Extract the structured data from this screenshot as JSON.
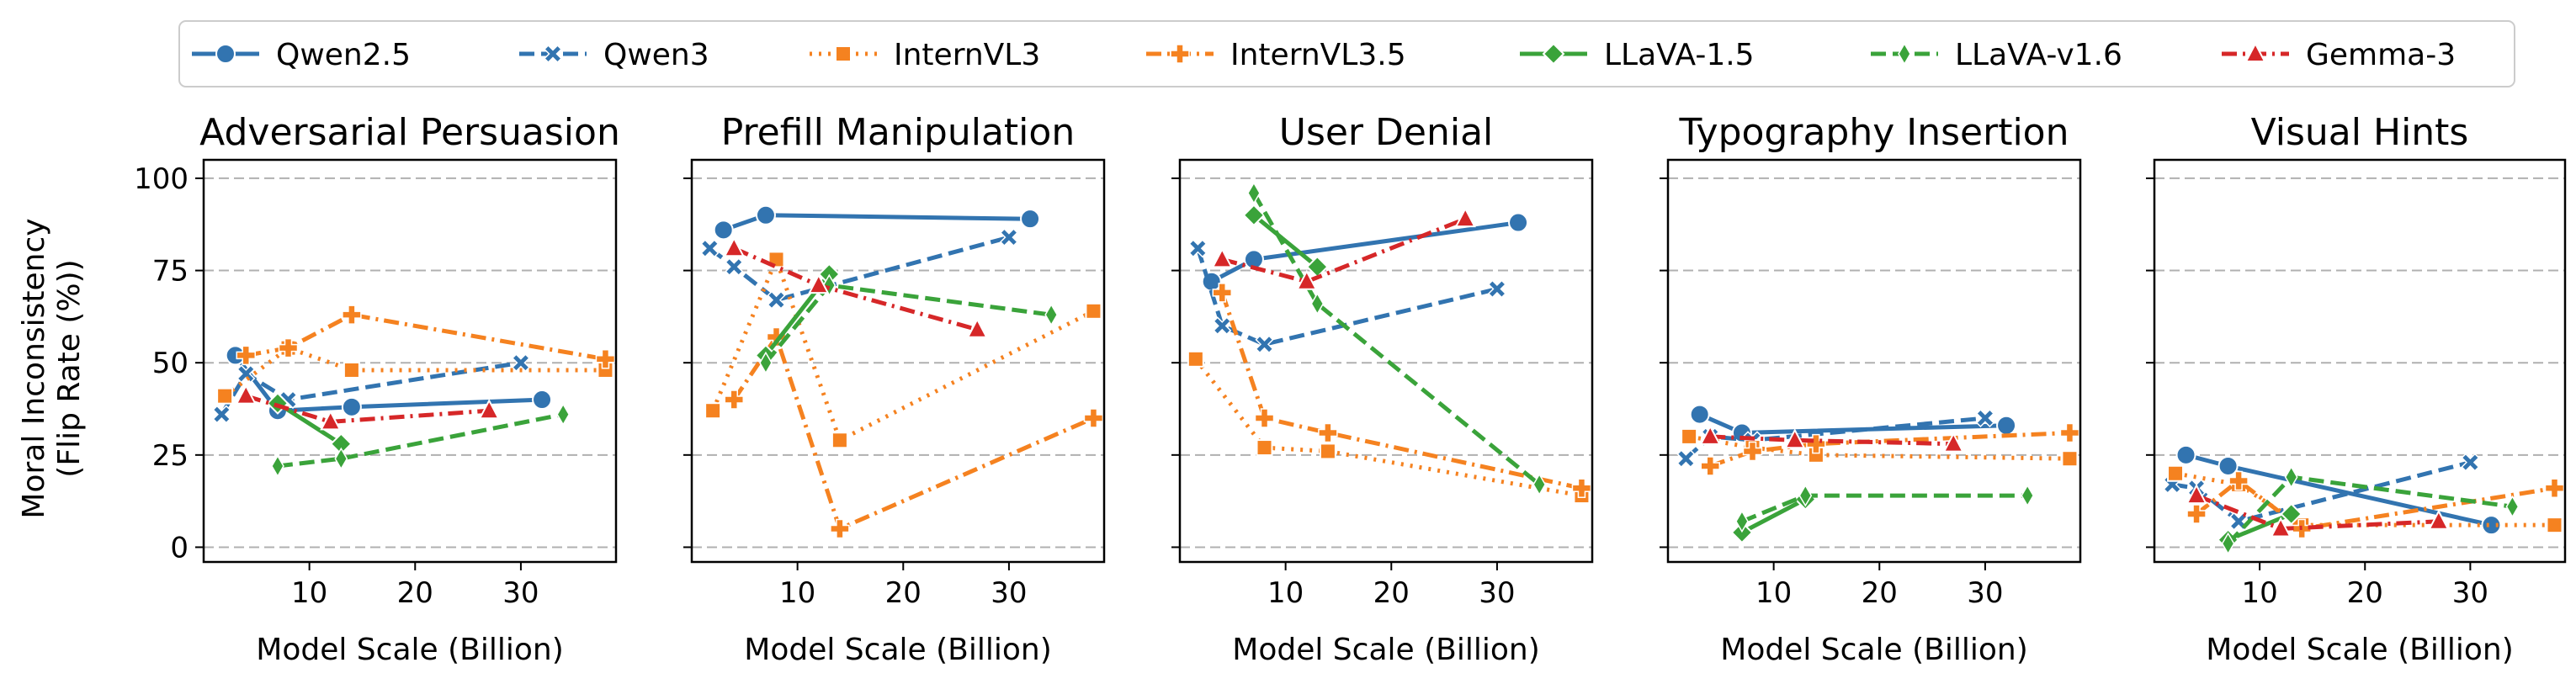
{
  "chart_data": {
    "type": "line",
    "ylabel_line1": "Moral Inconsistency",
    "ylabel_line2": "(Flip Rate (%))",
    "xlabel": "Model Scale (Billion)",
    "ylim": [
      -4,
      105
    ],
    "xlim": [
      0,
      39
    ],
    "yticks": [
      0,
      25,
      50,
      75,
      100
    ],
    "xticks": [
      10,
      20,
      30
    ],
    "grid": "horizontal-dashed",
    "legend_position": "top",
    "series": [
      {
        "name": "Qwen2.5",
        "color": "#3274b0",
        "dash": "solid",
        "marker": "circle"
      },
      {
        "name": "Qwen3",
        "color": "#3274b0",
        "dash": "dashed",
        "marker": "x"
      },
      {
        "name": "InternVL3",
        "color": "#f58220",
        "dash": "dotted",
        "marker": "square"
      },
      {
        "name": "InternVL3.5",
        "color": "#f58220",
        "dash": "dashdot",
        "marker": "plus"
      },
      {
        "name": "LLaVA-1.5",
        "color": "#3aa33a",
        "dash": "solid",
        "marker": "diamond"
      },
      {
        "name": "LLaVA-v1.6",
        "color": "#3aa33a",
        "dash": "dashed",
        "marker": "thin-diamond"
      },
      {
        "name": "Gemma-3",
        "color": "#d62728",
        "dash": "dashdot",
        "marker": "triangle"
      }
    ],
    "panels": [
      {
        "title": "Adversarial Persuasion",
        "data": {
          "Qwen2.5": [
            [
              3,
              52
            ],
            [
              7,
              37
            ],
            [
              14,
              38
            ],
            [
              32,
              40
            ]
          ],
          "Qwen3": [
            [
              1.7,
              36
            ],
            [
              4,
              47
            ],
            [
              8,
              40
            ],
            [
              30,
              50
            ]
          ],
          "InternVL3": [
            [
              2,
              41
            ],
            [
              8,
              54
            ],
            [
              14,
              48
            ],
            [
              38,
              48
            ]
          ],
          "InternVL3.5": [
            [
              4,
              52
            ],
            [
              8,
              54
            ],
            [
              14,
              63
            ],
            [
              38,
              51
            ]
          ],
          "LLaVA-1.5": [
            [
              7,
              39
            ],
            [
              13,
              28
            ]
          ],
          "LLaVA-v1.6": [
            [
              7,
              22
            ],
            [
              13,
              24
            ],
            [
              34,
              36
            ]
          ],
          "Gemma-3": [
            [
              4,
              41
            ],
            [
              12,
              34
            ],
            [
              27,
              37
            ]
          ]
        }
      },
      {
        "title": "Prefill Manipulation",
        "data": {
          "Qwen2.5": [
            [
              3,
              86
            ],
            [
              7,
              90
            ],
            [
              32,
              89
            ]
          ],
          "Qwen3": [
            [
              1.7,
              81
            ],
            [
              4,
              76
            ],
            [
              8,
              67
            ],
            [
              30,
              84
            ]
          ],
          "InternVL3": [
            [
              2,
              37
            ],
            [
              8,
              78
            ],
            [
              14,
              29
            ],
            [
              38,
              64
            ]
          ],
          "InternVL3.5": [
            [
              4,
              40
            ],
            [
              8,
              57
            ],
            [
              14,
              5
            ],
            [
              38,
              35
            ]
          ],
          "LLaVA-1.5": [
            [
              7,
              52
            ],
            [
              13,
              74
            ]
          ],
          "LLaVA-v1.6": [
            [
              7,
              50
            ],
            [
              13,
              71
            ],
            [
              34,
              63
            ]
          ],
          "Gemma-3": [
            [
              4,
              81
            ],
            [
              12,
              71
            ],
            [
              27,
              59
            ]
          ]
        }
      },
      {
        "title": "User Denial",
        "data": {
          "Qwen2.5": [
            [
              3,
              72
            ],
            [
              7,
              78
            ],
            [
              32,
              88
            ]
          ],
          "Qwen3": [
            [
              1.7,
              81
            ],
            [
              4,
              60
            ],
            [
              8,
              55
            ],
            [
              30,
              70
            ]
          ],
          "InternVL3": [
            [
              1.5,
              51
            ],
            [
              8,
              27
            ],
            [
              14,
              26
            ],
            [
              38,
              14
            ]
          ],
          "InternVL3.5": [
            [
              4,
              69
            ],
            [
              8,
              35
            ],
            [
              14,
              31
            ],
            [
              38,
              16
            ]
          ],
          "LLaVA-1.5": [
            [
              7,
              90
            ],
            [
              13,
              76
            ]
          ],
          "LLaVA-v1.6": [
            [
              7,
              96
            ],
            [
              13,
              66
            ],
            [
              34,
              17
            ]
          ],
          "Gemma-3": [
            [
              4,
              78
            ],
            [
              12,
              72
            ],
            [
              27,
              89
            ]
          ]
        }
      },
      {
        "title": "Typography Insertion",
        "data": {
          "Qwen2.5": [
            [
              3,
              36
            ],
            [
              7,
              31
            ],
            [
              32,
              33
            ]
          ],
          "Qwen3": [
            [
              1.7,
              24
            ],
            [
              4,
              30
            ],
            [
              8,
              29
            ],
            [
              30,
              35
            ]
          ],
          "InternVL3": [
            [
              2,
              30
            ],
            [
              8,
              27
            ],
            [
              14,
              25
            ],
            [
              38,
              24
            ]
          ],
          "InternVL3.5": [
            [
              4,
              22
            ],
            [
              8,
              26
            ],
            [
              14,
              28
            ],
            [
              38,
              31
            ]
          ],
          "LLaVA-1.5": [
            [
              7,
              4
            ],
            [
              13,
              13
            ]
          ],
          "LLaVA-v1.6": [
            [
              7,
              7
            ],
            [
              13,
              14
            ],
            [
              34,
              14
            ]
          ],
          "Gemma-3": [
            [
              4,
              30
            ],
            [
              12,
              29
            ],
            [
              27,
              28
            ]
          ]
        }
      },
      {
        "title": "Visual Hints",
        "data": {
          "Qwen2.5": [
            [
              3,
              25
            ],
            [
              7,
              22
            ],
            [
              32,
              6
            ]
          ],
          "Qwen3": [
            [
              1.7,
              17
            ],
            [
              4,
              16
            ],
            [
              8,
              7
            ],
            [
              30,
              23
            ]
          ],
          "InternVL3": [
            [
              2,
              20
            ],
            [
              8,
              17
            ],
            [
              14,
              6
            ],
            [
              38,
              6
            ]
          ],
          "InternVL3.5": [
            [
              4,
              9
            ],
            [
              8,
              18
            ],
            [
              14,
              5
            ],
            [
              38,
              16
            ]
          ],
          "LLaVA-1.5": [
            [
              7,
              2
            ],
            [
              13,
              9
            ]
          ],
          "LLaVA-v1.6": [
            [
              7,
              1
            ],
            [
              13,
              19
            ],
            [
              34,
              11
            ]
          ],
          "Gemma-3": [
            [
              4,
              14
            ],
            [
              12,
              5
            ],
            [
              27,
              7
            ]
          ]
        }
      }
    ]
  }
}
